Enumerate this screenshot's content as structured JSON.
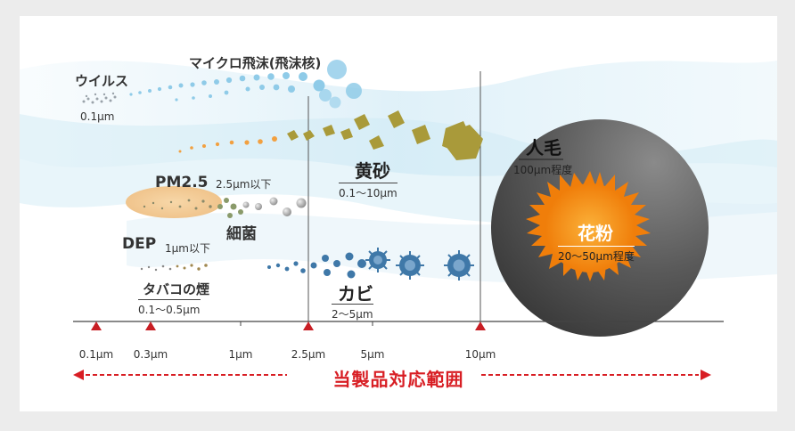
{
  "particles": {
    "virus": {
      "name": "ウイルス",
      "size": "0.1μm"
    },
    "droplet": {
      "name": "マイクロ飛沫(飛沫核)"
    },
    "yellow_sand": {
      "name": "黄砂",
      "size": "0.1〜10μm"
    },
    "pm25": {
      "name": "PM2.5",
      "size": "2.5μm以下"
    },
    "bacteria": {
      "name": "細菌"
    },
    "dep": {
      "name": "DEP",
      "size": "1μm以下"
    },
    "tobacco": {
      "name": "タバコの煙",
      "size": "0.1〜0.5μm"
    },
    "mold": {
      "name": "カビ",
      "size": "2〜5μm"
    },
    "hair": {
      "name": "人毛",
      "size": "100μm程度"
    },
    "pollen": {
      "name": "花粉",
      "size": "20〜50μm程度"
    }
  },
  "scale": {
    "ticks": [
      {
        "label": "0.1μm",
        "marked": true
      },
      {
        "label": "0.3μm",
        "marked": true
      },
      {
        "label": "1μm",
        "marked": false
      },
      {
        "label": "2.5μm",
        "marked": true
      },
      {
        "label": "5μm",
        "marked": false
      },
      {
        "label": "10μm",
        "marked": true
      }
    ]
  },
  "range_label": "当製品対応範囲",
  "colors": {
    "accent_red": "#d81e24",
    "droplet_blue": "#8fcbe8",
    "sand_olive": "#a99a3a",
    "mold_blue": "#3f78a8",
    "pollen_orange": "#f28a12"
  }
}
